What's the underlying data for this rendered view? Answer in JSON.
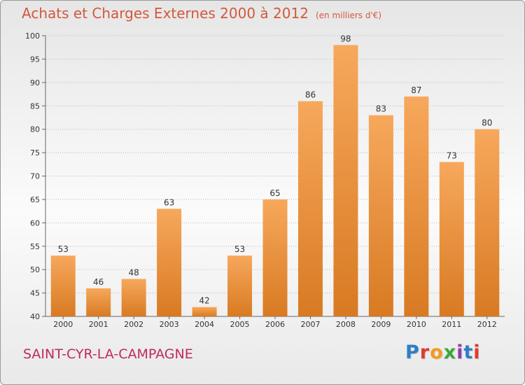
{
  "header": {
    "title": "Achats et Charges Externes 2000 à 2012",
    "unit": "(en milliers d'€)"
  },
  "footer": {
    "commune": "SAINT-CYR-LA-CAMPAGNE",
    "logo_text": "Proxiti",
    "logo_colors": [
      "#2c7fc9",
      "#e03a2f",
      "#f39a1e",
      "#3aa83a",
      "#8c3fb0",
      "#2c7fc9",
      "#e03a2f"
    ]
  },
  "colors": {
    "bar_top": "#f7a85c",
    "bar_bottom": "#d87a22",
    "axis": "#666666",
    "grid": "#bbbbbb"
  },
  "chart_data": {
    "type": "bar",
    "title": "Achats et Charges Externes 2000 à 2012",
    "subtitle": "(en milliers d'€)",
    "categories": [
      "2000",
      "2001",
      "2002",
      "2003",
      "2004",
      "2005",
      "2006",
      "2007",
      "2008",
      "2009",
      "2010",
      "2011",
      "2012"
    ],
    "values": [
      53,
      46,
      48,
      63,
      42,
      53,
      65,
      86,
      98,
      83,
      87,
      73,
      80
    ],
    "ylim": [
      40,
      100
    ],
    "yticks": [
      40,
      45,
      50,
      55,
      60,
      65,
      70,
      75,
      80,
      85,
      90,
      95,
      100
    ],
    "grid": true,
    "xlabel": "",
    "ylabel": ""
  }
}
